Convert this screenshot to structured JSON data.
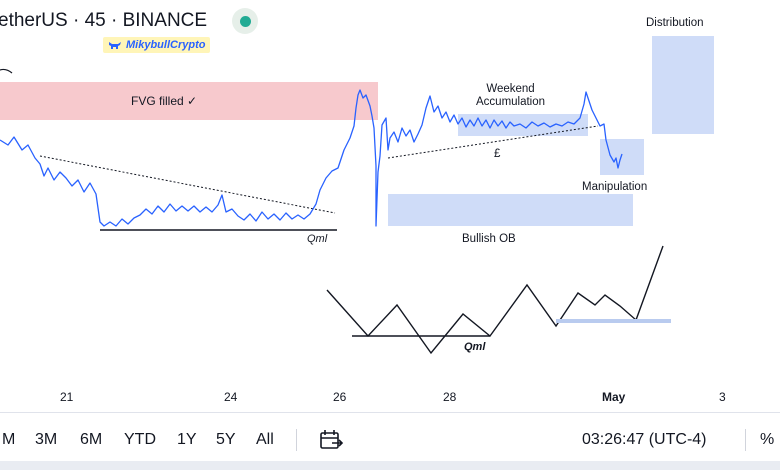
{
  "header": {
    "title": "etherUS · 45 · BINANCE",
    "author": "MikybullCrypto",
    "live_color": "#22ab94"
  },
  "annotations": {
    "fvg": "FVG filled ✓",
    "distribution": "Distribution",
    "weekend": "Weekend\nAccumulation",
    "pound": "£",
    "manipulation": "Manipulation",
    "qml_top": "Qml",
    "bullish_ob": "Bullish OB",
    "qml_bottom": "Qml"
  },
  "colors": {
    "fvg_zone": "#f7c9cd",
    "blue_zone": "#cfdcf8",
    "candle_line": "#2962ff",
    "text": "#131722"
  },
  "x_axis": {
    "labels": [
      "21",
      "24",
      "26",
      "28",
      "May",
      "3"
    ]
  },
  "footer": {
    "ranges": [
      "M",
      "3M",
      "6M",
      "YTD",
      "1Y",
      "5Y",
      "All"
    ],
    "calendar_icon": "calendar-range-icon",
    "clock": "03:26:47 (UTC-4)",
    "percent": "%"
  }
}
